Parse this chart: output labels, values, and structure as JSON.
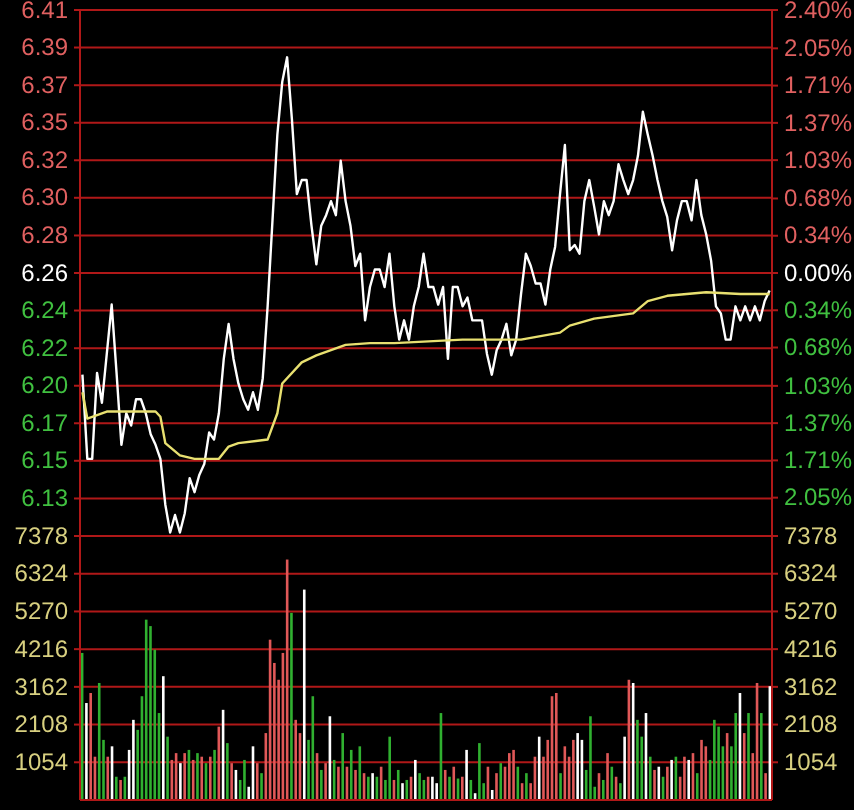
{
  "chart_data": [
    {
      "type": "line",
      "categories": [
        null,
        null,
        null,
        null,
        null,
        null,
        null,
        null,
        null,
        null,
        null,
        null,
        null,
        null,
        null,
        null,
        null,
        null,
        null,
        null,
        null,
        null,
        null,
        null,
        null,
        null,
        null,
        null,
        null,
        null,
        null,
        null,
        null,
        null,
        null,
        null,
        null,
        null,
        null,
        null,
        null,
        null,
        null,
        null,
        null,
        null,
        null,
        null,
        null,
        null,
        null,
        null,
        null,
        null,
        null,
        null,
        null,
        null,
        null,
        null,
        null,
        null,
        null,
        null,
        null,
        null,
        null,
        null,
        null,
        null,
        null,
        null,
        null,
        null,
        null,
        null,
        null,
        null,
        null,
        null,
        null,
        null,
        null,
        null,
        null,
        null,
        null,
        null,
        null,
        null,
        null,
        null,
        null,
        null,
        null,
        null,
        null,
        null,
        null,
        null,
        null,
        null,
        null,
        null,
        null,
        null,
        null,
        null,
        null,
        null,
        null,
        null,
        null,
        null,
        null,
        null,
        null,
        null,
        null,
        null,
        null,
        null,
        null,
        null,
        null,
        null,
        null,
        null,
        null,
        null,
        null,
        null,
        null,
        null,
        null,
        null,
        null,
        null,
        null,
        null,
        null,
        null
      ],
      "ylim": [
        6.11,
        6.41
      ],
      "yticks": [
        {
          "value": 6.1314,
          "label": "6.13"
        },
        {
          "value": 6.1529,
          "label": "6.15"
        },
        {
          "value": 6.1743,
          "label": "6.17"
        },
        {
          "value": 6.1957,
          "label": "6.20"
        },
        {
          "value": 6.2171,
          "label": "6.22"
        },
        {
          "value": 6.2386,
          "label": "6.24"
        },
        {
          "value": 6.26,
          "label": "6.26"
        },
        {
          "value": 6.2814,
          "label": "6.28"
        },
        {
          "value": 6.3029,
          "label": "6.30"
        },
        {
          "value": 6.3243,
          "label": "6.32"
        },
        {
          "value": 6.3457,
          "label": "6.35"
        },
        {
          "value": 6.3671,
          "label": "6.37"
        },
        {
          "value": 6.3886,
          "label": "6.39"
        },
        {
          "value": 6.41,
          "label": "6.41"
        }
      ],
      "y2lim": [
        -2.4,
        2.4
      ],
      "y2ticks": [
        {
          "value": -2.05,
          "label": "2.05%"
        },
        {
          "value": -1.71,
          "label": "1.71%"
        },
        {
          "value": -1.37,
          "label": "1.37%"
        },
        {
          "value": -1.03,
          "label": "1.03%"
        },
        {
          "value": -0.68,
          "label": "0.68%"
        },
        {
          "value": -0.34,
          "label": "0.34%"
        },
        {
          "value": 0,
          "label": "0.00%"
        },
        {
          "value": 0.34,
          "label": "0.34%"
        },
        {
          "value": 0.68,
          "label": "0.68%"
        },
        {
          "value": 1.03,
          "label": "1.03%"
        },
        {
          "value": 1.37,
          "label": "1.37%"
        },
        {
          "value": 1.71,
          "label": "1.71%"
        },
        {
          "value": 2.05,
          "label": "2.05%"
        },
        {
          "value": 2.4,
          "label": "2.40%"
        }
      ],
      "grid": "y",
      "tick_labels": "y",
      "series": [
        {
          "color": "#ffffff",
          "values": [
            6.202,
            6.154,
            6.154,
            6.203,
            6.186,
            6.214,
            6.242,
            6.203,
            6.162,
            6.18,
            6.173,
            6.188,
            6.188,
            6.18,
            6.168,
            6.162,
            6.154,
            6.128,
            6.112,
            6.122,
            6.112,
            6.123,
            6.143,
            6.135,
            6.145,
            6.151,
            6.169,
            6.165,
            6.18,
            6.211,
            6.231,
            6.211,
            6.197,
            6.188,
            6.182,
            6.192,
            6.182,
            6.2,
            6.241,
            6.29,
            6.339,
            6.369,
            6.383,
            6.347,
            6.305,
            6.313,
            6.313,
            6.287,
            6.265,
            6.287,
            6.293,
            6.301,
            6.293,
            6.324,
            6.301,
            6.287,
            6.264,
            6.271,
            6.233,
            6.252,
            6.262,
            6.262,
            6.252,
            6.271,
            6.241,
            6.222,
            6.233,
            6.222,
            6.241,
            6.252,
            6.271,
            6.252,
            6.252,
            6.242,
            6.252,
            6.211,
            6.252,
            6.252,
            6.241,
            6.246,
            6.233,
            6.233,
            6.233,
            6.214,
            6.202,
            6.216,
            6.222,
            6.231,
            6.213,
            6.222,
            6.248,
            6.271,
            6.264,
            6.254,
            6.254,
            6.242,
            6.262,
            6.275,
            6.305,
            6.333,
            6.273,
            6.276,
            6.271,
            6.301,
            6.313,
            6.298,
            6.282,
            6.301,
            6.293,
            6.301,
            6.322,
            6.313,
            6.305,
            6.313,
            6.327,
            6.352,
            6.339,
            6.327,
            6.313,
            6.301,
            6.292,
            6.273,
            6.29,
            6.301,
            6.301,
            6.29,
            6.313,
            6.293,
            6.282,
            6.267,
            6.241,
            6.237,
            6.222,
            6.222,
            6.241,
            6.233,
            6.241,
            6.233,
            6.241,
            6.233,
            6.244,
            6.25
          ]
        },
        {
          "color": "#e8e070",
          "values": [
            6.192,
            6.177,
            null,
            null,
            6.18,
            6.181,
            null,
            null,
            null,
            null,
            6.181,
            null,
            null,
            null,
            null,
            6.181,
            6.178,
            6.163,
            null,
            null,
            6.156,
            null,
            null,
            6.154,
            null,
            null,
            null,
            null,
            6.154,
            null,
            6.161,
            null,
            6.163,
            null,
            null,
            null,
            null,
            null,
            6.165,
            null,
            6.18,
            6.197,
            null,
            null,
            null,
            6.209,
            null,
            null,
            6.213,
            null,
            null,
            null,
            null,
            null,
            6.219,
            null,
            null,
            null,
            null,
            6.22,
            null,
            null,
            null,
            null,
            6.22,
            null,
            null,
            null,
            null,
            null,
            null,
            null,
            null,
            null,
            null,
            null,
            null,
            null,
            6.222,
            null,
            null,
            null,
            null,
            null,
            null,
            null,
            null,
            null,
            null,
            null,
            6.222,
            null,
            null,
            null,
            null,
            null,
            null,
            null,
            6.226,
            null,
            6.23,
            null,
            null,
            null,
            null,
            6.234,
            null,
            null,
            null,
            null,
            null,
            null,
            null,
            6.237,
            null,
            null,
            6.244,
            null,
            null,
            null,
            6.247,
            null,
            null,
            null,
            null,
            null,
            null,
            null,
            6.249,
            null,
            null,
            null,
            null,
            null,
            null,
            6.248,
            null,
            null,
            null,
            null,
            null,
            6.248
          ]
        }
      ]
    },
    {
      "type": "bar",
      "categories": [
        null,
        null,
        null,
        null,
        null,
        null,
        null,
        null,
        null,
        null,
        null,
        null,
        null,
        null,
        null,
        null,
        null,
        null,
        null,
        null,
        null,
        null,
        null,
        null,
        null,
        null,
        null,
        null,
        null,
        null,
        null,
        null,
        null,
        null,
        null,
        null,
        null,
        null,
        null,
        null,
        null,
        null,
        null,
        null,
        null,
        null,
        null,
        null,
        null,
        null,
        null,
        null,
        null,
        null,
        null,
        null,
        null,
        null,
        null,
        null,
        null,
        null,
        null,
        null,
        null,
        null,
        null,
        null,
        null,
        null,
        null,
        null,
        null,
        null,
        null,
        null,
        null,
        null,
        null,
        null,
        null,
        null,
        null,
        null,
        null,
        null,
        null,
        null,
        null,
        null,
        null,
        null,
        null,
        null,
        null,
        null,
        null,
        null,
        null,
        null,
        null,
        null,
        null,
        null,
        null,
        null,
        null,
        null,
        null,
        null,
        null,
        null,
        null,
        null,
        null,
        null,
        null,
        null,
        null,
        null,
        null,
        null,
        null,
        null,
        null,
        null,
        null,
        null,
        null,
        null,
        null,
        null,
        null,
        null,
        null,
        null,
        null,
        null,
        null,
        null,
        null,
        null,
        null,
        null,
        null,
        null,
        null,
        null,
        null,
        null,
        null,
        null,
        null,
        null,
        null,
        null,
        null,
        null,
        null,
        null,
        null,
        null
      ],
      "ylim": [
        0,
        7378
      ],
      "yticks": [
        1054,
        2108,
        3162,
        4216,
        5270,
        6324,
        7378
      ],
      "y2lim": [
        0,
        7378
      ],
      "y2ticks": [
        1054,
        2108,
        3162,
        4216,
        5270,
        6324,
        7378
      ],
      "grid": "y",
      "tick_labels": "y",
      "values": [
        4110,
        2710,
        2990,
        1210,
        3270,
        1680,
        1210,
        1500,
        650,
        560,
        650,
        1400,
        2240,
        1960,
        2900,
        5040,
        4860,
        4200,
        2430,
        3460,
        1770,
        1120,
        1310,
        1030,
        1310,
        1400,
        1120,
        1310,
        1210,
        1030,
        1210,
        1400,
        2050,
        2520,
        1590,
        1030,
        840,
        560,
        1120,
        370,
        1500,
        1030,
        750,
        1870,
        4480,
        3830,
        3360,
        4110,
        6720,
        5230,
        2240,
        1870,
        5880,
        1680,
        2900,
        1310,
        840,
        1030,
        2340,
        1120,
        930,
        1870,
        930,
        1400,
        840,
        1500,
        750,
        650,
        750,
        650,
        930,
        560,
        1770,
        560,
        840,
        470,
        560,
        650,
        1120,
        750,
        560,
        650,
        650,
        470,
        2430,
        840,
        650,
        930,
        600,
        650,
        1400,
        560,
        190,
        1590,
        470,
        930,
        280,
        750,
        1030,
        930,
        1310,
        1400,
        930,
        470,
        750,
        470,
        1210,
        1770,
        1210,
        1680,
        2900,
        2990,
        750,
        1500,
        1210,
        1680,
        1870,
        1680,
        840,
        2340,
        370,
        750,
        560,
        1310,
        930,
        650,
        470,
        1770,
        3360,
        3270,
        2240,
        1770,
        2430,
        1210,
        840,
        930,
        650,
        930,
        1120,
        1210,
        650,
        1210,
        1120,
        1310,
        750,
        1680,
        1500,
        1120,
        2240,
        2050,
        1500,
        1870,
        1500,
        2430,
        2990,
        1870,
        2430,
        1310,
        3270,
        2430,
        750,
        3180
      ],
      "colors": [
        "#30b030",
        "#ffffff",
        "#e05858",
        "#e05858",
        "#30b030",
        "#30b030",
        "#e05858",
        "#ffffff",
        "#30b030",
        "#e05858",
        "#30b030",
        "#ffffff",
        "#ffffff",
        "#30b030",
        "#30b030",
        "#30b030",
        "#30b030",
        "#30b030",
        "#30b030",
        "#ffffff",
        "#30b030",
        "#e05858",
        "#e05858",
        "#ffffff",
        "#e05858",
        "#30b030",
        "#e05858",
        "#30b030",
        "#e05858",
        "#30b030",
        "#e05858",
        "#30b030",
        "#e05858",
        "#ffffff",
        "#30b030",
        "#e05858",
        "#ffffff",
        "#30b030",
        "#30b030",
        "#ffffff",
        "#ffffff",
        "#e05858",
        "#30b030",
        "#e05858",
        "#e05858",
        "#e05858",
        "#e05858",
        "#e05858",
        "#e05858",
        "#30b030",
        "#e05858",
        "#e05858",
        "#ffffff",
        "#30b030",
        "#30b030",
        "#e05858",
        "#30b030",
        "#e05858",
        "#ffffff",
        "#30b030",
        "#e05858",
        "#30b030",
        "#e05858",
        "#30b030",
        "#e05858",
        "#30b030",
        "#e05858",
        "#30b030",
        "#ffffff",
        "#30b030",
        "#e05858",
        "#30b030",
        "#30b030",
        "#e05858",
        "#30b030",
        "#ffffff",
        "#30b030",
        "#e05858",
        "#ffffff",
        "#30b030",
        "#30b030",
        "#e05858",
        "#ffffff",
        "#ffffff",
        "#30b030",
        "#e05858",
        "#30b030",
        "#e05858",
        "#30b030",
        "#e05858",
        "#ffffff",
        "#30b030",
        "#ffffff",
        "#30b030",
        "#30b030",
        "#e05858",
        "#ffffff",
        "#e05858",
        "#30b030",
        "#e05858",
        "#e05858",
        "#e05858",
        "#30b030",
        "#e05858",
        "#30b030",
        "#e05858",
        "#e05858",
        "#ffffff",
        "#e05858",
        "#e05858",
        "#e05858",
        "#e05858",
        "#30b030",
        "#e05858",
        "#e05858",
        "#e05858",
        "#ffffff",
        "#ffffff",
        "#30b030",
        "#30b030",
        "#30b030",
        "#e05858",
        "#30b030",
        "#e05858",
        "#30b030",
        "#e05858",
        "#30b030",
        "#ffffff",
        "#e05858",
        "#ffffff",
        "#30b030",
        "#30b030",
        "#ffffff",
        "#30b030",
        "#e05858",
        "#ffffff",
        "#30b030",
        "#e05858",
        "#ffffff",
        "#30b030",
        "#e05858",
        "#e05858",
        "#ffffff",
        "#e05858",
        "#30b030",
        "#e05858",
        "#e05858",
        "#30b030",
        "#30b030",
        "#30b030",
        "#30b030",
        "#e05858",
        "#30b030",
        "#30b030",
        "#ffffff",
        "#e05858",
        "#30b030",
        "#e05858",
        "#e05858",
        "#30b030",
        "#e05858",
        "#ffffff"
      ]
    }
  ]
}
